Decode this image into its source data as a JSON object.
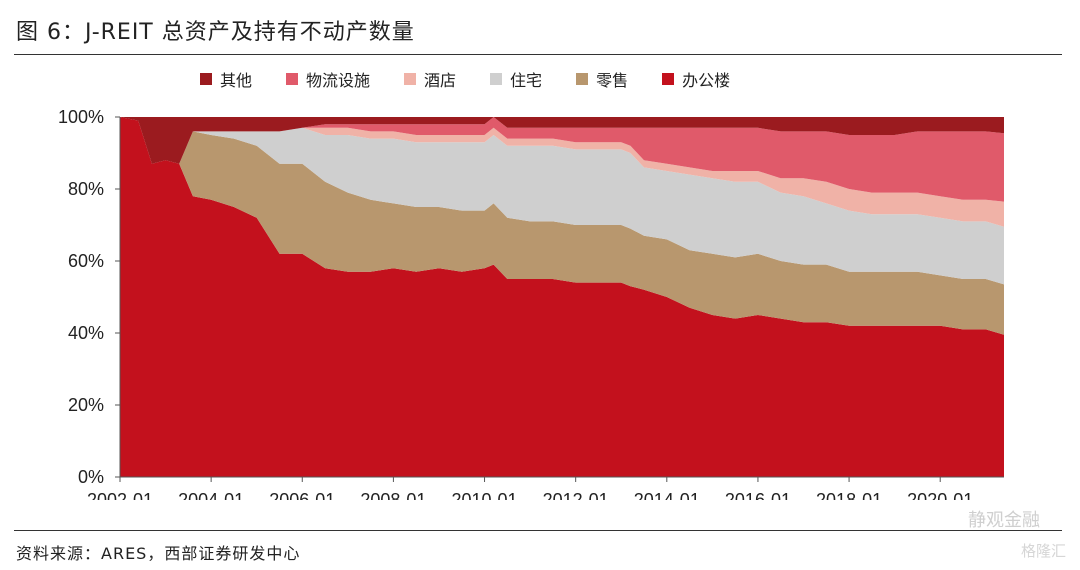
{
  "title": "图 6：J-REIT 总资产及持有不动产数量",
  "source": "资料来源：ARES，西部证券研发中心",
  "watermark": "静观金融",
  "watermark2": "格隆汇",
  "colors": {
    "其他": "#9b1b1f",
    "物流设施": "#e05a6a",
    "酒店": "#f0b2a7",
    "住宅": "#cfcfcf",
    "零售": "#b8976e",
    "办公楼": "#c3111d"
  },
  "chart_data": {
    "type": "area",
    "stacked": true,
    "title": "",
    "xlabel": "",
    "ylabel": "",
    "ylim": [
      0,
      100
    ],
    "yticks": [
      "0%",
      "20%",
      "40%",
      "60%",
      "80%",
      "100%"
    ],
    "xticks": [
      "2002-01",
      "2004-01",
      "2006-01",
      "2008-01",
      "2010-01",
      "2012-01",
      "2014-01",
      "2016-01",
      "2018-01",
      "2020-01"
    ],
    "legend_position": "top",
    "legend": [
      "其他",
      "物流设施",
      "酒店",
      "住宅",
      "零售",
      "办公楼"
    ],
    "x": [
      2002.0,
      2002.4,
      2002.7,
      2003.0,
      2003.3,
      2003.6,
      2004.0,
      2004.5,
      2005.0,
      2005.5,
      2006.0,
      2006.5,
      2007.0,
      2007.5,
      2008.0,
      2008.5,
      2009.0,
      2009.5,
      2010.0,
      2010.2,
      2010.5,
      2011.0,
      2011.5,
      2012.0,
      2012.5,
      2013.0,
      2013.2,
      2013.5,
      2014.0,
      2014.5,
      2015.0,
      2015.5,
      2016.0,
      2016.5,
      2017.0,
      2017.5,
      2018.0,
      2018.5,
      2019.0,
      2019.5,
      2020.0,
      2020.5,
      2021.0,
      2021.4
    ],
    "series": [
      {
        "name": "办公楼",
        "values": [
          100,
          99,
          87,
          88,
          87,
          78,
          77,
          75,
          72,
          62,
          62,
          58,
          57,
          57,
          58,
          57,
          58,
          57,
          58,
          59,
          55,
          55,
          55,
          54,
          54,
          54,
          53,
          52,
          50,
          47,
          45,
          44,
          45,
          44,
          43,
          43,
          42,
          42,
          42,
          42,
          42,
          41,
          41,
          39.5
        ]
      },
      {
        "name": "零售",
        "values": [
          0,
          0,
          0,
          0,
          0,
          18,
          18,
          19,
          20,
          25,
          25,
          24,
          22,
          20,
          18,
          18,
          17,
          17,
          16,
          17,
          17,
          16,
          16,
          16,
          16,
          16,
          16,
          15,
          16,
          16,
          17,
          17,
          17,
          16,
          16,
          16,
          15,
          15,
          15,
          15,
          14,
          14,
          14,
          14
        ]
      },
      {
        "name": "住宅",
        "values": [
          0,
          0,
          0,
          0,
          0,
          0,
          1,
          2,
          4,
          9,
          10,
          13,
          16,
          17,
          18,
          18,
          18,
          19,
          19,
          19,
          20,
          21,
          21,
          21,
          21,
          21,
          21,
          19,
          19,
          21,
          21,
          21,
          20,
          19,
          19,
          17,
          17,
          16,
          16,
          16,
          16,
          16,
          16,
          16
        ]
      },
      {
        "name": "酒店",
        "values": [
          0,
          0,
          0,
          0,
          0,
          0,
          0,
          0,
          0,
          0,
          0,
          2,
          2,
          2,
          2,
          2,
          2,
          2,
          2,
          2,
          2,
          2,
          2,
          2,
          2,
          2,
          2,
          2,
          2,
          2,
          2,
          3,
          3,
          4,
          5,
          6,
          6,
          6,
          6,
          6,
          6,
          6,
          6,
          7
        ]
      },
      {
        "name": "物流设施",
        "values": [
          0,
          0,
          0,
          0,
          0,
          0,
          0,
          0,
          0,
          0,
          0,
          1,
          1,
          2,
          2,
          3,
          3,
          3,
          3,
          3,
          3,
          3,
          3,
          4,
          4,
          4,
          5,
          9,
          10,
          11,
          12,
          12,
          12,
          13,
          13,
          14,
          15,
          16,
          16,
          17,
          18,
          19,
          19,
          19
        ]
      },
      {
        "name": "其他",
        "values": [
          0,
          1,
          13,
          12,
          13,
          4,
          4,
          4,
          4,
          4,
          3,
          2,
          2,
          2,
          2,
          2,
          2,
          2,
          2,
          0,
          3,
          3,
          3,
          3,
          3,
          3,
          3,
          3,
          3,
          3,
          3,
          3,
          3,
          4,
          4,
          4,
          5,
          5,
          5,
          4,
          4,
          4,
          4,
          4.5
        ]
      }
    ]
  }
}
